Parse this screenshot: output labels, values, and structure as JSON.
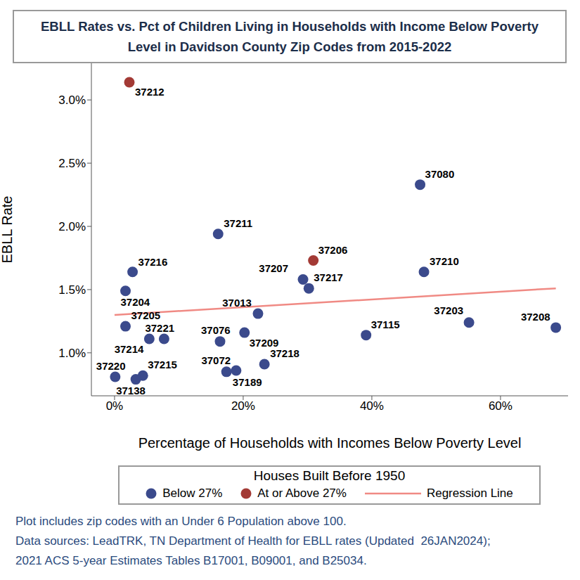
{
  "chart_data": {
    "type": "scatter",
    "title": [
      "EBLL Rates vs. Pct of Children Living in Households with Income Below Poverty",
      "Level in Davidson County Zip Codes from 2015-2022"
    ],
    "x_label": "Percentage of Households with Incomes Below Poverty Level",
    "y_label": "EBLL Rate",
    "xlim": [
      -3.6,
      70.5
    ],
    "ylim": [
      0.66,
      3.29
    ],
    "xticks": [
      {
        "value": 0,
        "label": "0%"
      },
      {
        "value": 20,
        "label": "20%"
      },
      {
        "value": 40,
        "label": "40%"
      },
      {
        "value": 60,
        "label": "60%"
      }
    ],
    "yticks": [
      {
        "value": 1,
        "label": "1.0%"
      },
      {
        "value": 1.5,
        "label": "1.5%"
      },
      {
        "value": 2,
        "label": "2.0%"
      },
      {
        "value": 2.5,
        "label": "2.5%"
      },
      {
        "value": 3,
        "label": "3.0%"
      }
    ],
    "grid": false,
    "legend_title": "Houses Built Before 1950",
    "series": [
      {
        "name": "Below 27%",
        "color": "#3b4a8c",
        "labels": [
          "37080",
          "37211",
          "37210",
          "37216",
          "37207",
          "37204",
          "37217",
          "37013",
          "37203",
          "37205",
          "37208",
          "37209",
          "37115",
          "37221",
          "37214",
          "37076",
          "37218",
          "37072",
          "37189",
          "37215",
          "37220",
          "37138"
        ],
        "x": [
          47.5,
          16.1,
          48.1,
          2.8,
          29.3,
          1.7,
          30.2,
          22.3,
          55.1,
          1.7,
          68.6,
          20.2,
          39.1,
          7.7,
          5.4,
          16.4,
          23.3,
          17.4,
          18.9,
          4.4,
          0.1,
          3.3
        ],
        "y": [
          2.33,
          1.94,
          1.64,
          1.64,
          1.58,
          1.49,
          1.51,
          1.31,
          1.24,
          1.21,
          1.2,
          1.16,
          1.14,
          1.11,
          1.11,
          1.09,
          0.91,
          0.85,
          0.86,
          0.82,
          0.81,
          0.79
        ]
      },
      {
        "name": "At or Above 27%",
        "color": "#a33a35",
        "labels": [
          "37212",
          "37206"
        ],
        "x": [
          2.3,
          30.9
        ],
        "y": [
          3.14,
          1.73
        ]
      },
      {
        "name": "Regression Line",
        "type": "line",
        "color": "#f08a84",
        "x": [
          0,
          68.6
        ],
        "y": [
          1.3,
          1.51
        ]
      }
    ],
    "notes": [
      "Plot includes zip codes with an Under 6 Population above 100.",
      "Data sources: LeadTRK, TN Department of Health for EBLL rates (Updated  26JAN2024);",
      "2021 ACS 5-year Estimates Tables B17001, B09001, and B25034."
    ]
  }
}
